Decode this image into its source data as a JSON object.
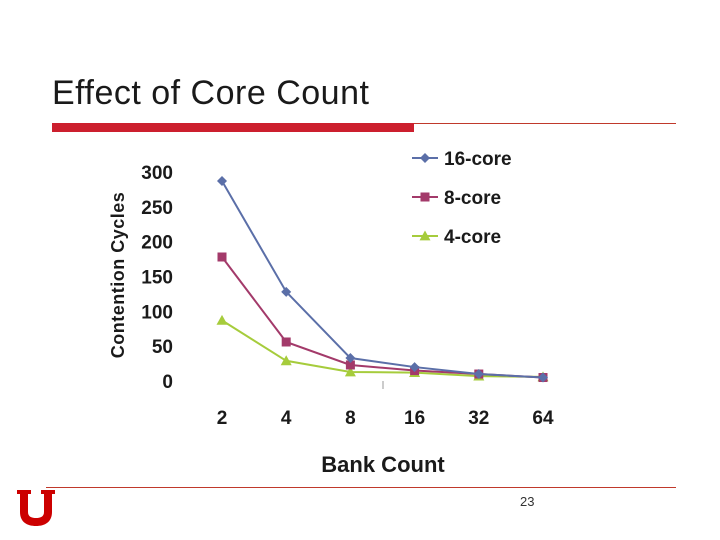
{
  "slide": {
    "title": "Effect of Core Count",
    "page_number": "23",
    "accent_color": "#cc1f2e",
    "rule_color": "#c0392b"
  },
  "logo": {
    "icon": "university-u-logo-icon",
    "color": "#cc0000"
  },
  "chart_data": {
    "type": "line",
    "title": "",
    "xlabel": "Bank Count",
    "ylabel": "Contention Cycles",
    "categories": [
      "2",
      "4",
      "8",
      "16",
      "32",
      "64"
    ],
    "yticks": [
      0,
      50,
      100,
      150,
      200,
      250,
      300
    ],
    "ylim": [
      0,
      300
    ],
    "grid": false,
    "legend_position": "top-right",
    "series": [
      {
        "name": "16-core",
        "color": "#5b6fa8",
        "marker": "diamond",
        "values": [
          287,
          128,
          33,
          20,
          10,
          5
        ]
      },
      {
        "name": "8-core",
        "color": "#a33a6a",
        "marker": "square",
        "values": [
          178,
          56,
          23,
          15,
          10,
          5
        ]
      },
      {
        "name": "4-core",
        "color": "#a6cc3c",
        "marker": "triangle",
        "values": [
          87,
          29,
          13,
          12,
          7,
          6
        ]
      }
    ]
  }
}
